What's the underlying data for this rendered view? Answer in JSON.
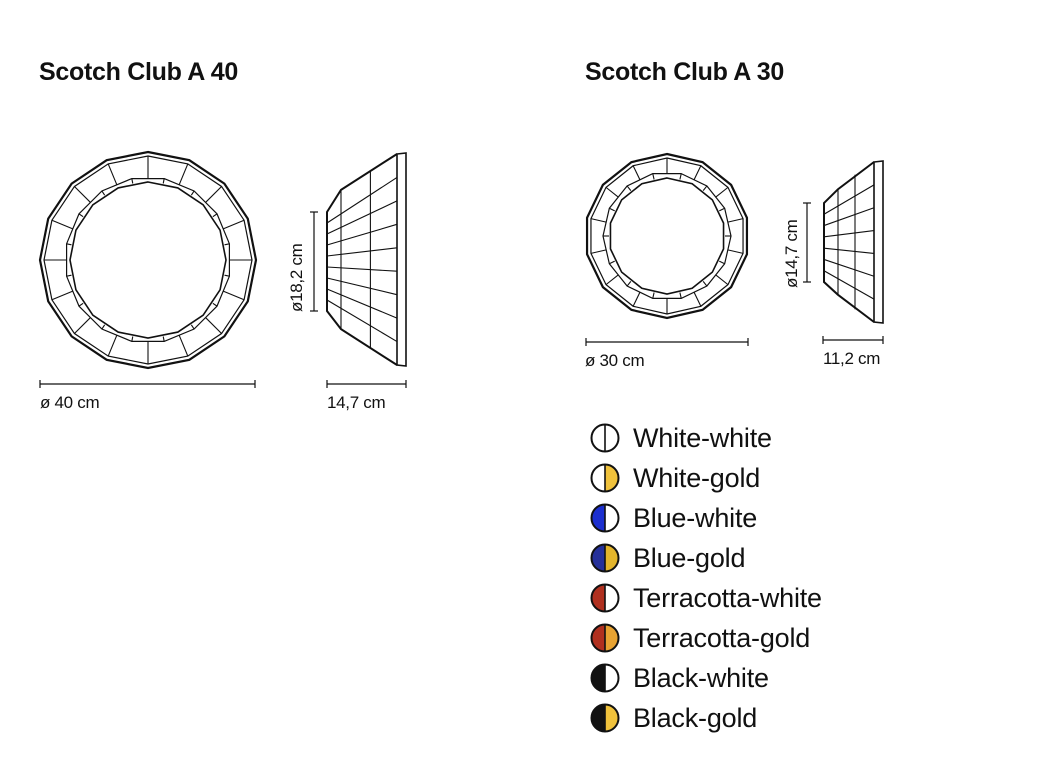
{
  "models": [
    {
      "title": "Scotch Club A 40",
      "diameter_label": "ø 40 cm",
      "height_label": "ø18,2 cm",
      "depth_label": "14,7 cm"
    },
    {
      "title": "Scotch Club A 30",
      "diameter_label": "ø 30 cm",
      "height_label": "ø14,7 cm",
      "depth_label": "11,2 cm"
    }
  ],
  "finishes": [
    {
      "label": "White-white",
      "left_color": "#ffffff",
      "right_color": "#ffffff"
    },
    {
      "label": "White-gold",
      "left_color": "#ffffff",
      "right_color": "#f0c23c"
    },
    {
      "label": "Blue-white",
      "left_color": "#1c2fcf",
      "right_color": "#ffffff"
    },
    {
      "label": "Blue-gold",
      "left_color": "#25309a",
      "right_color": "#e3b52c"
    },
    {
      "label": "Terracotta-white",
      "left_color": "#b0301f",
      "right_color": "#ffffff"
    },
    {
      "label": "Terracotta-gold",
      "left_color": "#b0301f",
      "right_color": "#e8a332"
    },
    {
      "label": "Black-white",
      "left_color": "#111111",
      "right_color": "#ffffff"
    },
    {
      "label": "Black-gold",
      "left_color": "#111111",
      "right_color": "#f0c23c"
    }
  ]
}
